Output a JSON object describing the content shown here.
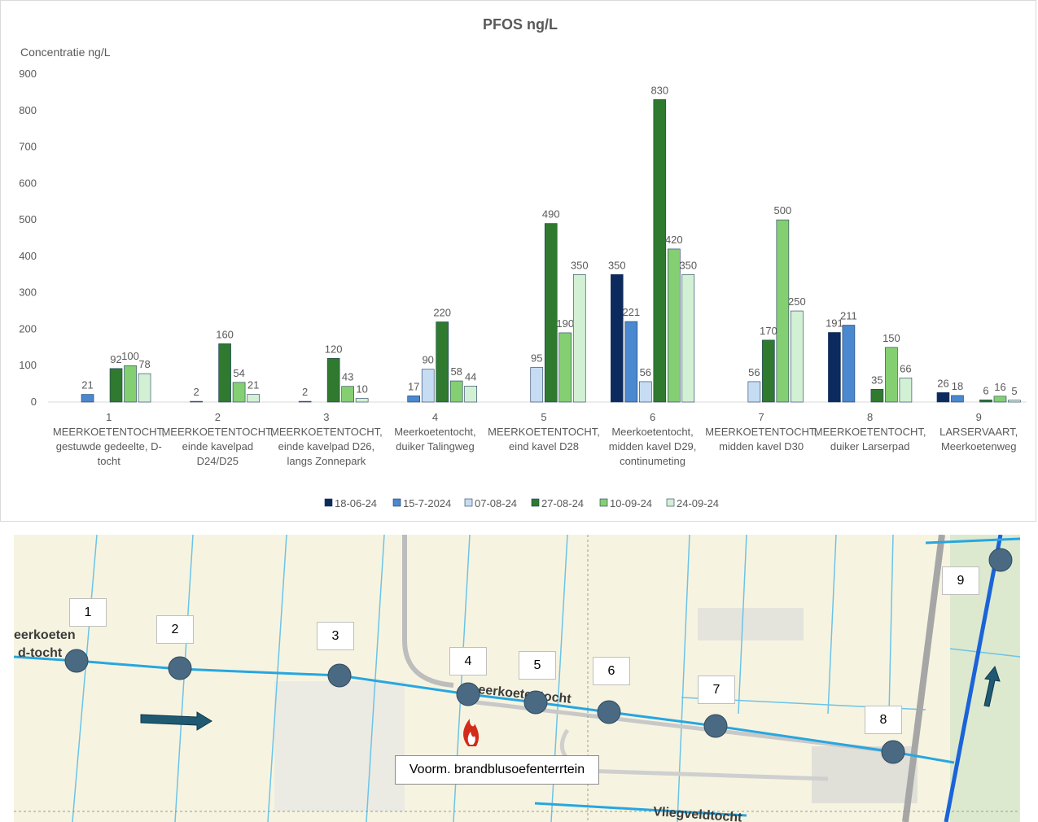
{
  "chart_data": {
    "type": "bar",
    "title": "PFOS ng/L",
    "ylabel": "Concentratie ng/L",
    "ylim": [
      0,
      900
    ],
    "yticks": [
      0,
      100,
      200,
      300,
      400,
      500,
      600,
      700,
      800,
      900
    ],
    "grid": false,
    "legend_position": "bottom",
    "categories": [
      [
        "1",
        "MEERKOETENTOCHT,",
        "gestuwde gedeelte, D-",
        "tocht"
      ],
      [
        "2",
        "MEERKOETENTOCHT,",
        "einde kavelpad",
        "D24/D25"
      ],
      [
        "3",
        "MEERKOETENTOCHT,",
        "einde kavelpad D26,",
        "langs Zonnepark"
      ],
      [
        "4",
        "Meerkoetentocht,",
        "duiker Talingweg"
      ],
      [
        "5",
        "MEERKOETENTOCHT,",
        "eind kavel D28"
      ],
      [
        "6",
        "Meerkoetentocht,",
        "midden kavel D29,",
        "continumeting"
      ],
      [
        "7",
        "MEERKOETENTOCHT,",
        "midden kavel D30"
      ],
      [
        "8",
        "MEERKOETENTOCHT,",
        "duiker Larserpad"
      ],
      [
        "9",
        "LARSERVAART,",
        "Meerkoetenweg"
      ]
    ],
    "series": [
      {
        "name": "18-06-24",
        "color": "#0d2a5e",
        "values": [
          null,
          null,
          null,
          null,
          null,
          350,
          null,
          191,
          26
        ]
      },
      {
        "name": "15-7-2024",
        "color": "#4a88d0",
        "values": [
          21,
          2,
          2,
          17,
          null,
          221,
          null,
          211,
          18
        ]
      },
      {
        "name": "07-08-24",
        "color": "#c5dcf3",
        "values": [
          null,
          null,
          null,
          90,
          95,
          56,
          56,
          null,
          null
        ]
      },
      {
        "name": "27-08-24",
        "color": "#2f7a2f",
        "values": [
          92,
          160,
          120,
          220,
          490,
          830,
          170,
          35,
          6
        ]
      },
      {
        "name": "10-09-24",
        "color": "#84cf72",
        "values": [
          100,
          54,
          43,
          58,
          190,
          420,
          500,
          150,
          16
        ]
      },
      {
        "name": "24-09-24",
        "color": "#d2f0d3",
        "values": [
          78,
          21,
          10,
          44,
          350,
          350,
          250,
          66,
          5
        ]
      }
    ]
  },
  "map": {
    "points": [
      {
        "label": "1"
      },
      {
        "label": "2"
      },
      {
        "label": "3"
      },
      {
        "label": "4"
      },
      {
        "label": "5"
      },
      {
        "label": "6"
      },
      {
        "label": "7"
      },
      {
        "label": "8"
      },
      {
        "label": "9"
      }
    ],
    "caption": "Voorm. brandblusoefenterrtein",
    "street_labels": [
      "eerkoeten",
      "d-tocht",
      "eerkoetentocht",
      "Vliegveldtocht"
    ],
    "colors": {
      "water": "#27a6e0",
      "point": "#4a6a84",
      "arrow": "#1f5a72",
      "fire": "#d42a1a"
    }
  }
}
